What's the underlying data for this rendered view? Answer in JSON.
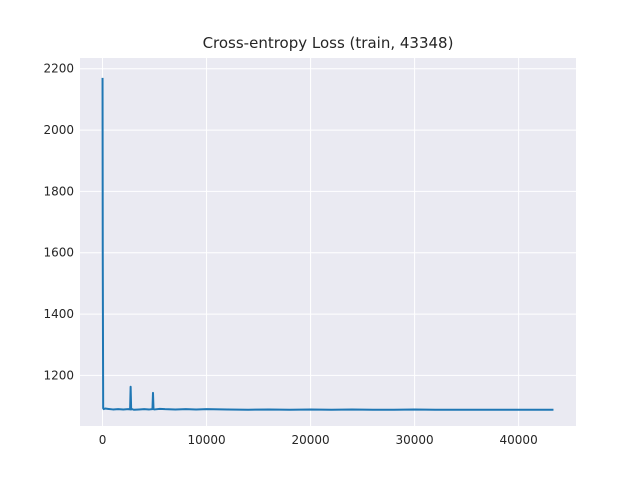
{
  "chart_data": {
    "type": "line",
    "title": "Cross-entropy Loss (train, 43348)",
    "xlabel": "",
    "ylabel": "",
    "xlim": [
      -2167,
      45515
    ],
    "ylim": [
      1035,
      2235
    ],
    "xticks": [
      0,
      10000,
      20000,
      30000,
      40000
    ],
    "xtick_labels": [
      "0",
      "10000",
      "20000",
      "30000",
      "40000"
    ],
    "yticks": [
      1200,
      1400,
      1600,
      1800,
      2000,
      2200
    ],
    "ytick_labels": [
      "1200",
      "1400",
      "1600",
      "1800",
      "2000",
      "2200"
    ],
    "grid": true,
    "background_color": "#eaeaf2",
    "grid_color": "#ffffff",
    "line_color": "#1f77b4",
    "series": [
      {
        "x": [
          0,
          20,
          60,
          120,
          250,
          500,
          1000,
          1500,
          2000,
          2500,
          2650,
          2700,
          2750,
          2850,
          3000,
          3500,
          4000,
          4500,
          4800,
          4850,
          4900,
          5000,
          5500,
          6000,
          7000,
          8000,
          9000,
          10000,
          12000,
          14000,
          16000,
          18000,
          20000,
          22000,
          24000,
          26000,
          28000,
          30000,
          32000,
          34000,
          36000,
          38000,
          40000,
          42000,
          43348
        ],
        "y": [
          2170,
          1600,
          1093,
          1090,
          1092,
          1091,
          1089,
          1090,
          1089,
          1090,
          1089,
          1163,
          1089,
          1090,
          1088,
          1089,
          1090,
          1089,
          1090,
          1143,
          1090,
          1089,
          1091,
          1090,
          1089,
          1090,
          1089,
          1090,
          1089,
          1088,
          1089,
          1088,
          1089,
          1088,
          1089,
          1088,
          1088,
          1089,
          1088,
          1088,
          1088,
          1088,
          1088,
          1088,
          1088
        ]
      }
    ]
  }
}
